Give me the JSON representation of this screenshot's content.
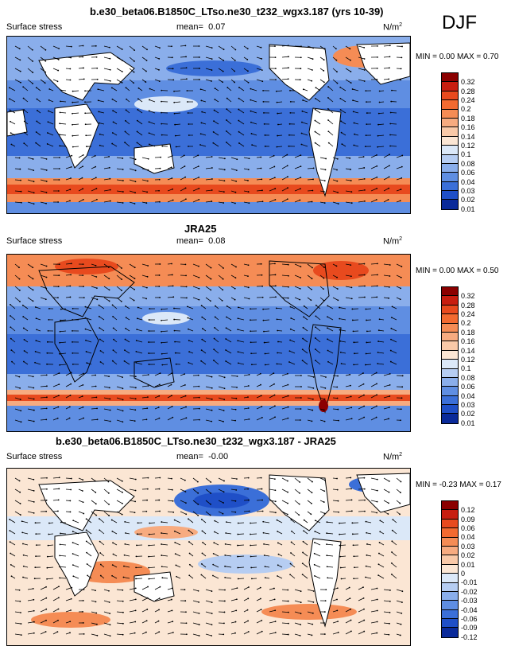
{
  "season": "DJF",
  "panels": [
    {
      "title": "b.e30_beta06.B1850C_LTso.ne30_t232_wgx3.187 (yrs 10-39)",
      "field": "Surface stress",
      "mean_label": "mean=",
      "mean": "0.07",
      "units": "N/m",
      "units_sup": "2",
      "minmax": "MIN =  0.00 MAX =  0.70",
      "levels": [
        "0.32",
        "0.28",
        "0.24",
        "0.2",
        "0.18",
        "0.16",
        "0.14",
        "0.12",
        "0.1",
        "0.08",
        "0.06",
        "0.04",
        "0.03",
        "0.02",
        "0.01"
      ]
    },
    {
      "title": "JRA25",
      "field": "Surface stress",
      "mean_label": "mean=",
      "mean": "0.08",
      "units": "N/m",
      "units_sup": "2",
      "minmax": "MIN =  0.00 MAX =  0.50",
      "levels": [
        "0.32",
        "0.28",
        "0.24",
        "0.2",
        "0.18",
        "0.16",
        "0.14",
        "0.12",
        "0.1",
        "0.08",
        "0.06",
        "0.04",
        "0.03",
        "0.02",
        "0.01"
      ]
    },
    {
      "title": "b.e30_beta06.B1850C_LTso.ne30_t232_wgx3.187 - JRA25",
      "field": "Surface stress",
      "mean_label": "mean=",
      "mean": "-0.00",
      "units": "N/m",
      "units_sup": "2",
      "minmax": "MIN = -0.23 MAX =  0.17",
      "levels": [
        "0.12",
        "0.09",
        "0.06",
        "0.04",
        "0.03",
        "0.02",
        "0.01",
        "0",
        "-0.01",
        "-0.02",
        "-0.03",
        "-0.04",
        "-0.06",
        "-0.09",
        "-0.12"
      ]
    }
  ],
  "colors": {
    "scale": [
      "#8b0000",
      "#c81e10",
      "#e84a1e",
      "#f26a30",
      "#f58c55",
      "#f7ab80",
      "#f9c9a8",
      "#fbe6d4",
      "#dbe8f8",
      "#b6cdf2",
      "#8aaeeb",
      "#5f8ee2",
      "#3b6fd8",
      "#1f4fc7",
      "#0a2a9a"
    ]
  }
}
